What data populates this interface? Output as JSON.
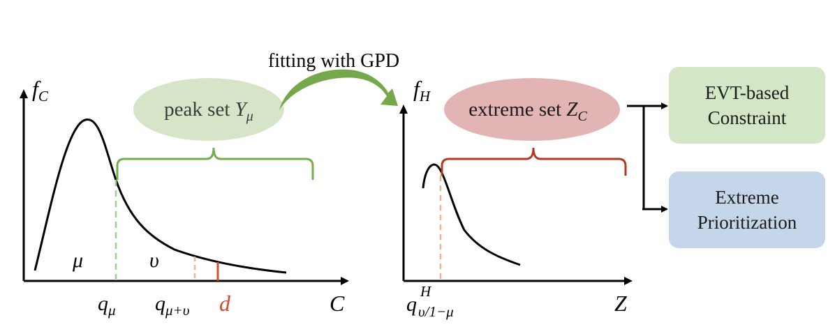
{
  "arrow_label": "fitting with GPD",
  "left_plot": {
    "y_axis_label": "f",
    "y_axis_sub": "C",
    "x_axis_label": "C",
    "region_mu": "μ",
    "region_v": "υ",
    "tick_q_mu": "q",
    "tick_q_mu_sub": "μ",
    "tick_q_mu_v": "q",
    "tick_q_mu_v_sub": "μ+υ",
    "tick_d": "d"
  },
  "peak_set": {
    "text": "peak set ",
    "symbol": "Y",
    "symbol_sub": "μ"
  },
  "right_plot": {
    "y_axis_label": "f",
    "y_axis_sub": "H",
    "x_axis_label": "Z",
    "tick_q": "q",
    "tick_q_sup": "H",
    "tick_q_sub": "υ/1−μ"
  },
  "extreme_set": {
    "text": "extreme set ",
    "symbol": "Z",
    "symbol_sub": "C"
  },
  "boxes": {
    "evt": {
      "line1": "EVT-based",
      "line2": "Constraint"
    },
    "prior": {
      "line1": "Extreme",
      "line2": "Prioritization"
    }
  },
  "colors": {
    "green_ellipse": "#d6e4c8",
    "red_ellipse": "#e3b4b4",
    "green_brace": "#73ae4a",
    "red_brace": "#b33a22",
    "green_dash": "#9fd08c",
    "orange_dash": "#f0b48c",
    "red_mark": "#d84a2c",
    "box_green": "#d3e6c5",
    "box_blue": "#c6d6ea"
  }
}
